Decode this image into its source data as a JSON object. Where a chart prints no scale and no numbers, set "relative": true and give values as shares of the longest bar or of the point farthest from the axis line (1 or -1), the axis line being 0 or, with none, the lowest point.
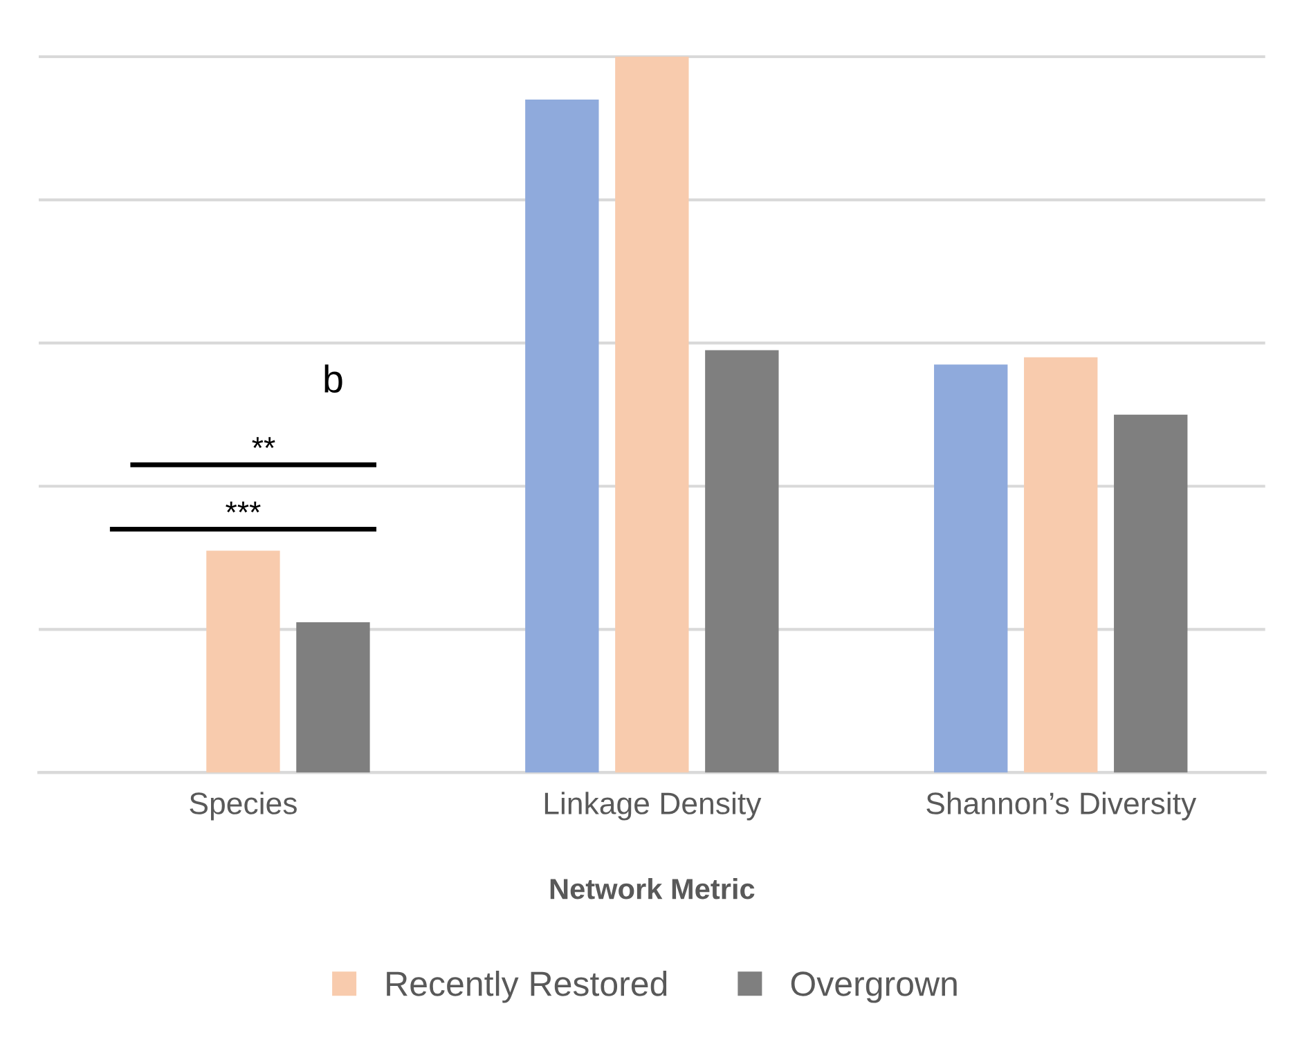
{
  "chart_data": {
    "type": "bar",
    "relative": true,
    "xlabel": "Network Metric",
    "categories": [
      "Species",
      "Linkage Density",
      "Shannon’s Diversity"
    ],
    "series": [
      {
        "color": "#8faadc",
        "values": [
          null,
          0.94,
          0.57
        ]
      },
      {
        "name": "Recently Restored",
        "color": "#f8cbad",
        "values": [
          0.31,
          1.0,
          0.58
        ]
      },
      {
        "name": "Overgrown",
        "color": "#7f7f7f",
        "values": [
          0.21,
          0.59,
          0.5
        ]
      }
    ],
    "annotations": [
      "***",
      "**",
      "b"
    ],
    "grid": "y",
    "legend": "bottom"
  }
}
